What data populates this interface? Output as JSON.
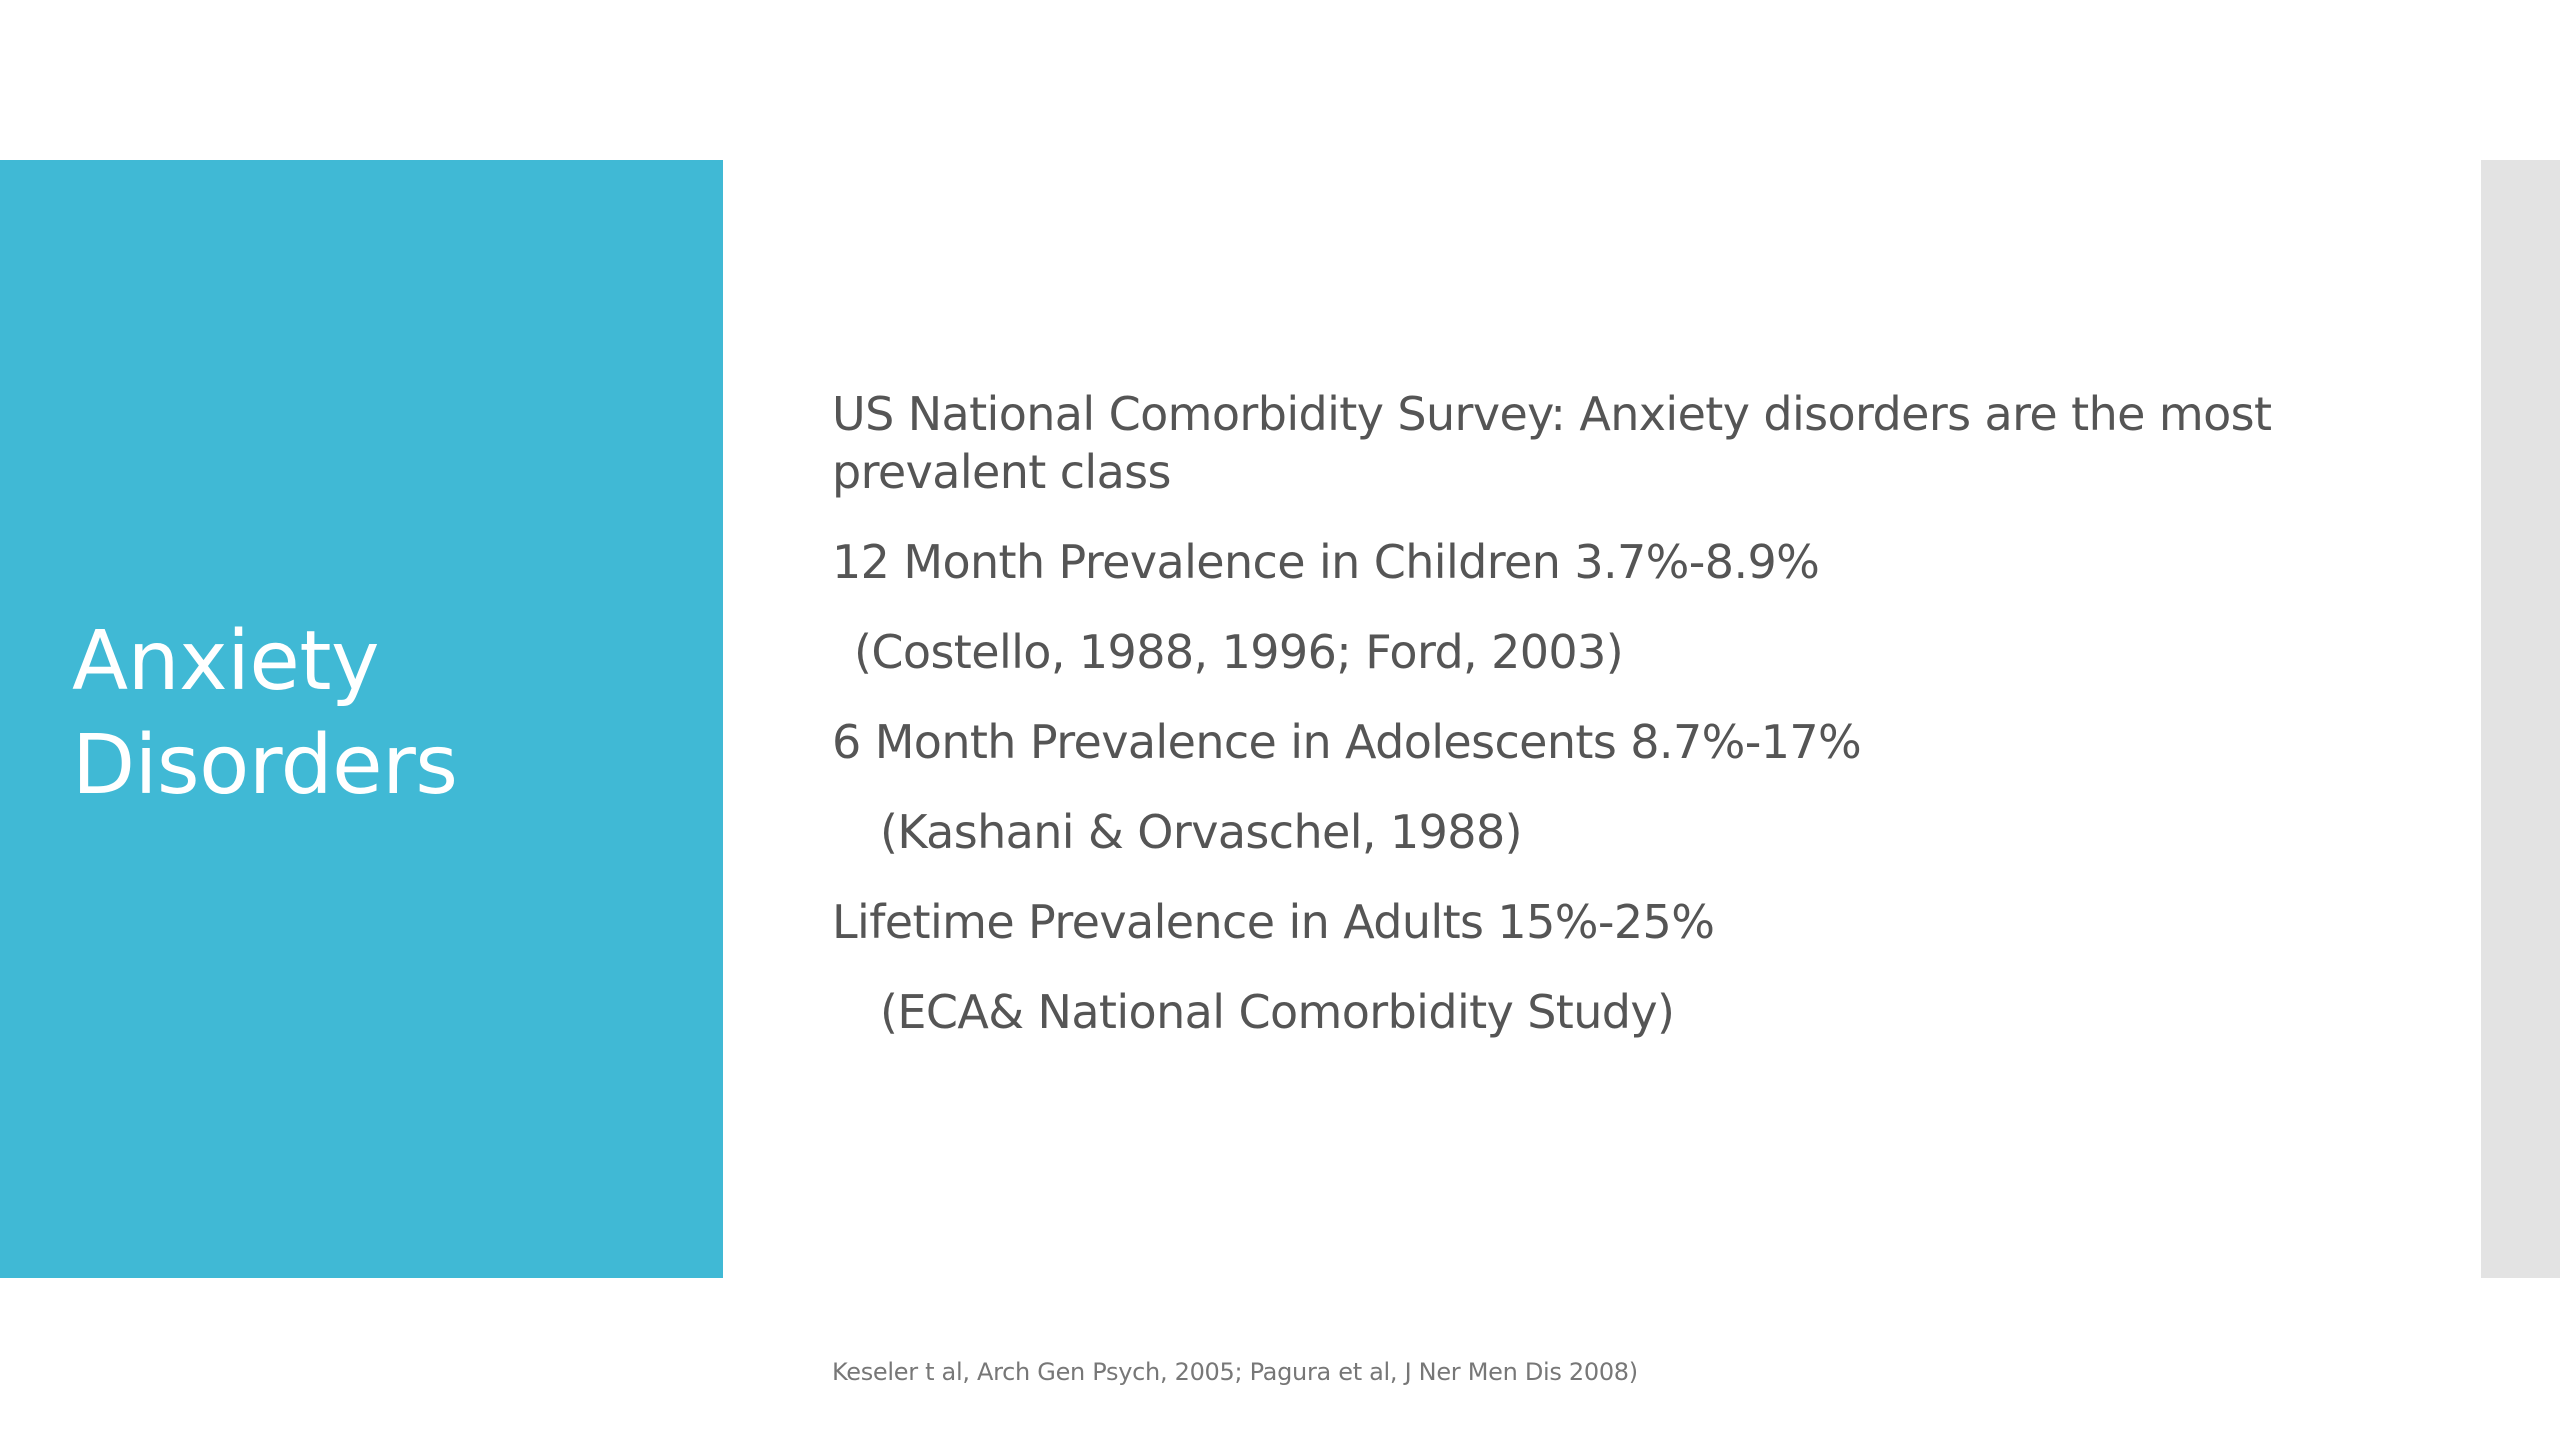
{
  "slide": {
    "title": "Anxiety\nDisorders",
    "colors": {
      "title_panel": "#40b9d5",
      "right_strip": "#e3e3e3",
      "body_text": "#555555",
      "title_text": "#ffffff"
    },
    "body_lines": [
      "US National Comorbidity Survey: Anxiety disorders are the most prevalent class",
      "12 Month Prevalence in Children 3.7%-8.9%",
      " (Costello, 1988, 1996; Ford, 2003)",
      "6 Month Prevalence in Adolescents 8.7%-17%",
      "  (Kashani & Orvaschel, 1988)",
      "Lifetime Prevalence in Adults 15%-25%",
      "  (ECA& National Comorbidity Study)"
    ],
    "footnote": "Keseler t al, Arch Gen Psych, 2005; Pagura et al, J Ner Men Dis 2008)"
  }
}
